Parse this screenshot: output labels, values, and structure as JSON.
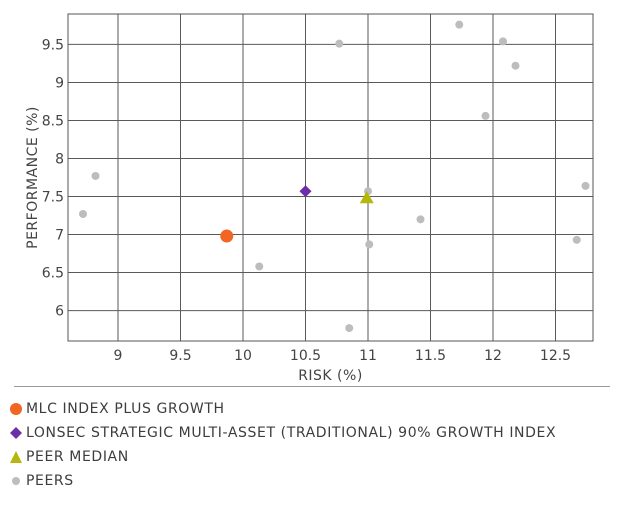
{
  "chart_data": {
    "type": "scatter",
    "title": "",
    "xlabel": "RISK (%)",
    "ylabel": "PERFORMANCE (%)",
    "xlim": [
      8.6,
      12.8
    ],
    "ylim": [
      5.6,
      9.9
    ],
    "x_ticks": [
      "9",
      "9.5",
      "10",
      "10.5",
      "11",
      "11.5",
      "12",
      "12.5"
    ],
    "y_ticks": [
      "6",
      "6.5",
      "7",
      "7.5",
      "8",
      "8.5",
      "9",
      "9.5"
    ],
    "grid": true,
    "legend_position": "bottom",
    "series": [
      {
        "name": "MLC INDEX PLUS GROWTH",
        "marker": "circle",
        "color": "#f26522",
        "points": [
          {
            "x": 9.87,
            "y": 6.98
          }
        ]
      },
      {
        "name": "LONSEC STRATEGIC MULTI-ASSET (TRADITIONAL) 90% GROWTH INDEX",
        "marker": "diamond",
        "color": "#6f2da8",
        "points": [
          {
            "x": 10.5,
            "y": 7.57
          }
        ]
      },
      {
        "name": "PEER MEDIAN",
        "marker": "triangle",
        "color": "#b5b80b",
        "points": [
          {
            "x": 10.99,
            "y": 7.48
          }
        ]
      },
      {
        "name": "PEERS",
        "marker": "circle",
        "color": "#bdbdbd",
        "points": [
          {
            "x": 8.72,
            "y": 7.27
          },
          {
            "x": 8.82,
            "y": 7.77
          },
          {
            "x": 10.13,
            "y": 6.58
          },
          {
            "x": 10.77,
            "y": 9.51
          },
          {
            "x": 10.85,
            "y": 5.77
          },
          {
            "x": 11.0,
            "y": 7.57
          },
          {
            "x": 11.01,
            "y": 6.87
          },
          {
            "x": 11.42,
            "y": 7.2
          },
          {
            "x": 11.73,
            "y": 9.76
          },
          {
            "x": 11.94,
            "y": 8.56
          },
          {
            "x": 12.08,
            "y": 9.54
          },
          {
            "x": 12.18,
            "y": 9.22
          },
          {
            "x": 12.67,
            "y": 6.93
          },
          {
            "x": 12.74,
            "y": 7.64
          }
        ]
      }
    ]
  }
}
